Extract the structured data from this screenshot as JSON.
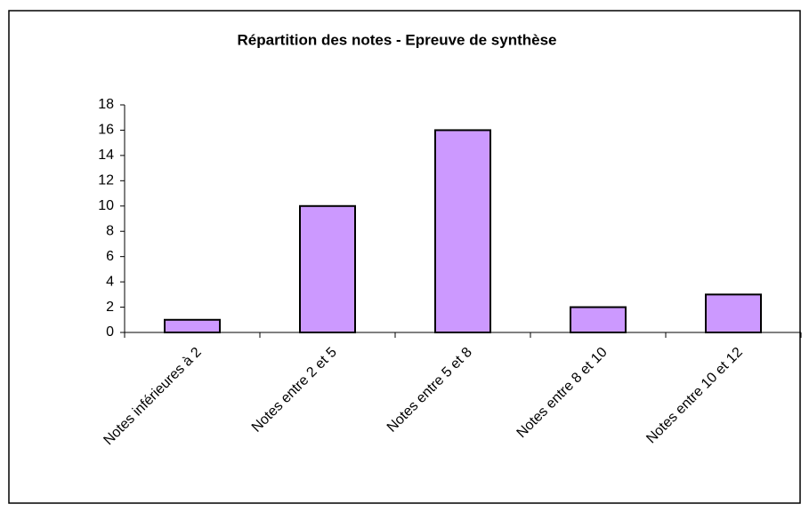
{
  "chart_data": {
    "type": "bar",
    "title": "Répartition des notes - Epreuve de synthèse",
    "categories": [
      "Notes inférieures à 2",
      "Notes entre 2 et 5",
      "Notes entre 5 et 8",
      "Notes entre 8 et 10",
      "Notes entre 10 et 12"
    ],
    "values": [
      1,
      10,
      16,
      2,
      3
    ],
    "color": "#cc99ff",
    "ylim": [
      0,
      18
    ],
    "yticks": [
      0,
      2,
      4,
      6,
      8,
      10,
      12,
      14,
      16,
      18
    ],
    "grid": false
  }
}
